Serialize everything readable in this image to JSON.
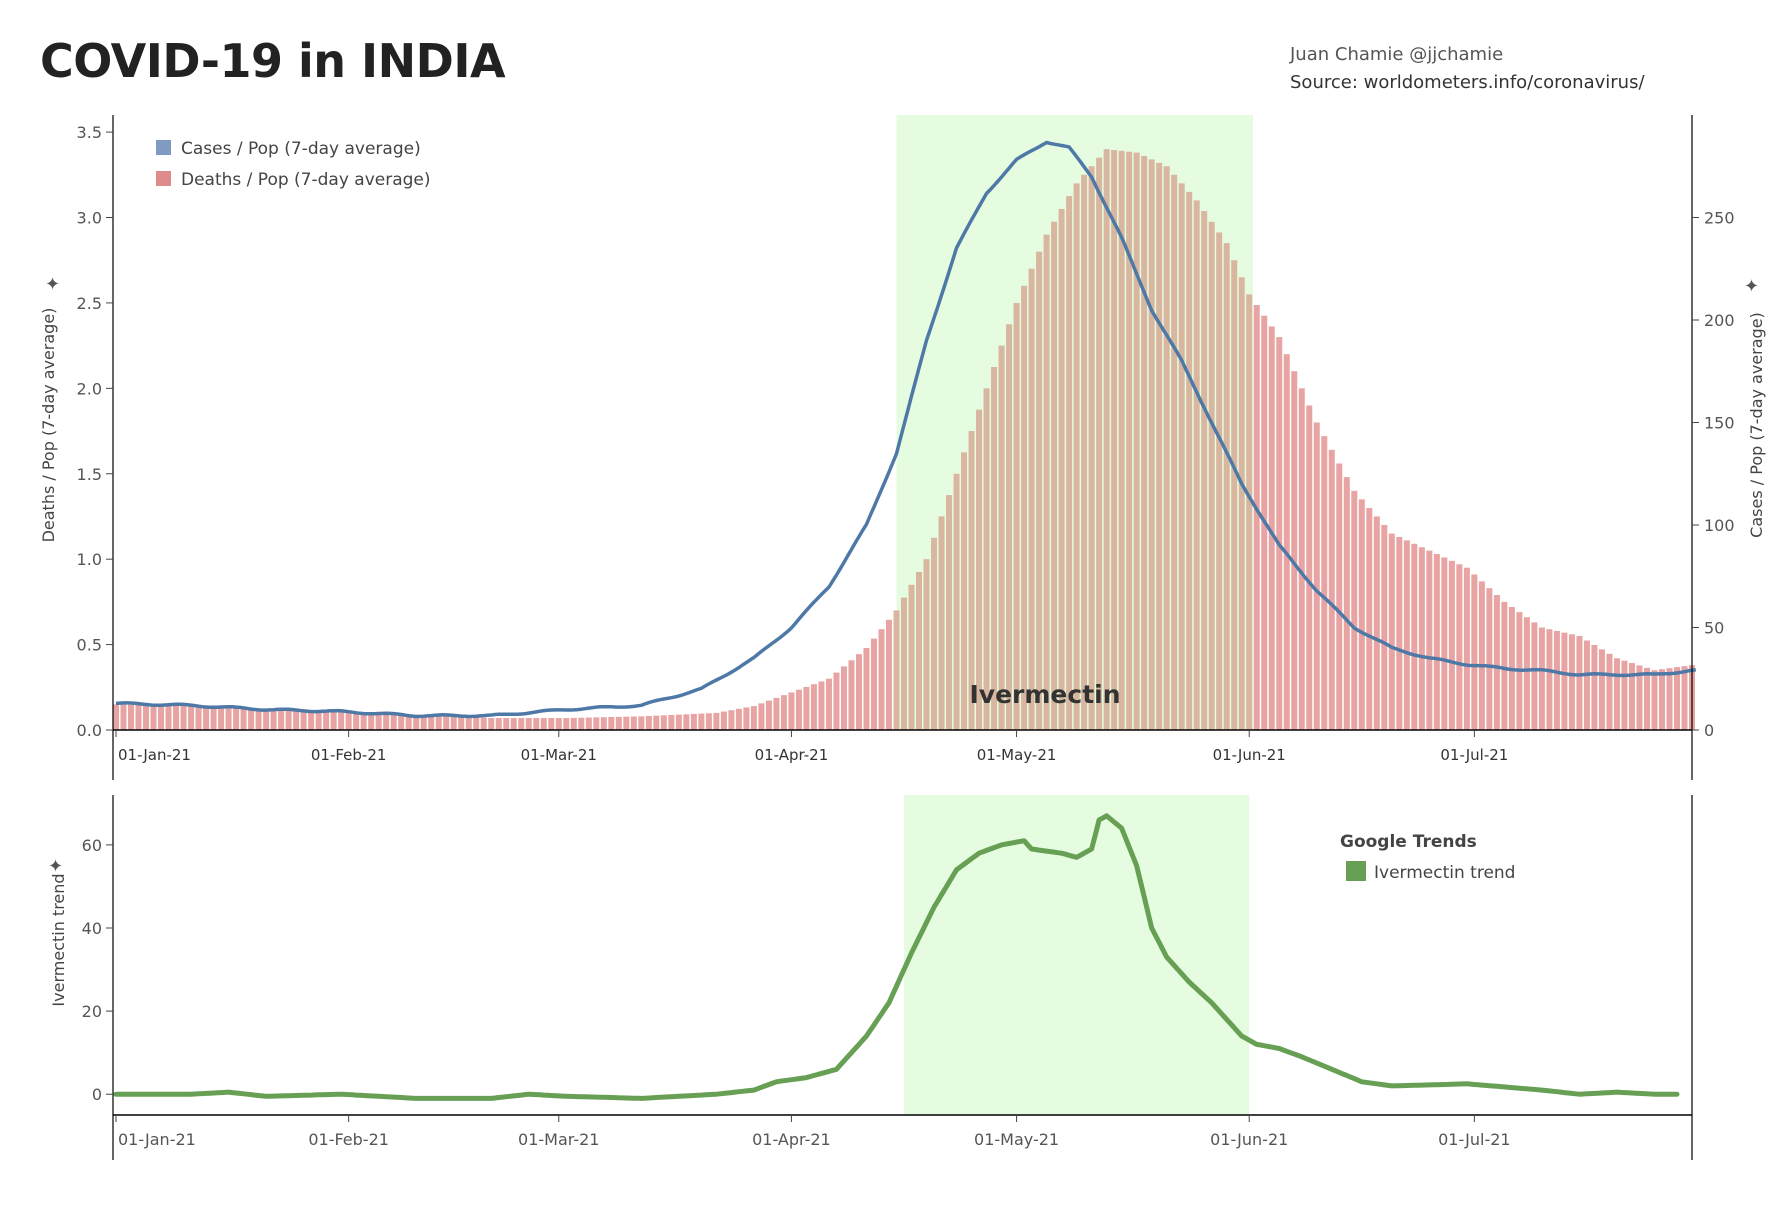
{
  "title": "COVID-19 in INDIA",
  "author": "Juan Chamie @jjchamie",
  "source": "Source: worldometers.info/coronavirus/",
  "highlight_label": "Ivermectin",
  "chart_data": [
    {
      "type": "bar+line",
      "x_start": "01-Jan-21",
      "days": 211,
      "x_ticks": [
        {
          "label": "01-Jan-21",
          "day": 0
        },
        {
          "label": "01-Feb-21",
          "day": 31
        },
        {
          "label": "01-Mar-21",
          "day": 59
        },
        {
          "label": "01-Apr-21",
          "day": 90
        },
        {
          "label": "01-May-21",
          "day": 120
        },
        {
          "label": "01-Jun-21",
          "day": 151
        },
        {
          "label": "01-Jul-21",
          "day": 181
        }
      ],
      "highlight_days": [
        104,
        151.5
      ],
      "left_axis": {
        "label": "Deaths / Pop (7-day average)",
        "ylim": [
          0,
          3.6
        ],
        "ticks": [
          "0.0",
          "0.5",
          "1.0",
          "1.5",
          "2.0",
          "2.5",
          "3.0",
          "3.5"
        ]
      },
      "right_axis": {
        "label": "Cases / Pop (7-day average)",
        "ylim": [
          0,
          300
        ],
        "ticks": [
          "0",
          "50",
          "100",
          "150",
          "200",
          "250"
        ]
      },
      "legend": [
        "Cases / Pop (7-day average)",
        "Deaths / Pop (7-day average)"
      ],
      "colors": {
        "cases": "#4e79a7",
        "cases_legend": "#7f9bc2",
        "deaths": "#e8a3a3",
        "deaths_legend": "#e08b8b",
        "highlight": "#e6fce0"
      },
      "deaths_keypoints": [
        [
          0,
          0.15
        ],
        [
          10,
          0.14
        ],
        [
          20,
          0.12
        ],
        [
          30,
          0.11
        ],
        [
          40,
          0.09
        ],
        [
          50,
          0.07
        ],
        [
          60,
          0.07
        ],
        [
          70,
          0.08
        ],
        [
          80,
          0.1
        ],
        [
          85,
          0.14
        ],
        [
          90,
          0.22
        ],
        [
          95,
          0.3
        ],
        [
          100,
          0.48
        ],
        [
          104,
          0.7
        ],
        [
          108,
          1.0
        ],
        [
          112,
          1.5
        ],
        [
          116,
          2.0
        ],
        [
          120,
          2.5
        ],
        [
          124,
          2.9
        ],
        [
          128,
          3.2
        ],
        [
          132,
          3.4
        ],
        [
          136,
          3.38
        ],
        [
          140,
          3.3
        ],
        [
          144,
          3.1
        ],
        [
          148,
          2.85
        ],
        [
          151,
          2.55
        ],
        [
          155,
          2.3
        ],
        [
          160,
          1.8
        ],
        [
          165,
          1.4
        ],
        [
          170,
          1.15
        ],
        [
          175,
          1.05
        ],
        [
          180,
          0.95
        ],
        [
          185,
          0.75
        ],
        [
          190,
          0.6
        ],
        [
          195,
          0.55
        ],
        [
          200,
          0.42
        ],
        [
          205,
          0.35
        ],
        [
          210,
          0.38
        ]
      ],
      "cases_keypoints": [
        [
          0,
          13
        ],
        [
          10,
          12
        ],
        [
          20,
          10
        ],
        [
          30,
          9
        ],
        [
          40,
          7
        ],
        [
          50,
          7
        ],
        [
          60,
          10
        ],
        [
          70,
          12
        ],
        [
          78,
          20
        ],
        [
          85,
          35
        ],
        [
          90,
          50
        ],
        [
          95,
          70
        ],
        [
          100,
          100
        ],
        [
          104,
          135
        ],
        [
          108,
          190
        ],
        [
          112,
          235
        ],
        [
          116,
          262
        ],
        [
          120,
          278
        ],
        [
          124,
          287
        ],
        [
          127,
          284
        ],
        [
          130,
          270
        ],
        [
          134,
          240
        ],
        [
          138,
          205
        ],
        [
          142,
          180
        ],
        [
          146,
          150
        ],
        [
          150,
          120
        ],
        [
          155,
          90
        ],
        [
          160,
          68
        ],
        [
          165,
          50
        ],
        [
          170,
          40
        ],
        [
          175,
          35
        ],
        [
          180,
          32
        ],
        [
          185,
          30
        ],
        [
          190,
          29
        ],
        [
          195,
          27
        ],
        [
          200,
          27
        ],
        [
          205,
          27
        ],
        [
          210,
          29
        ]
      ]
    },
    {
      "type": "line",
      "y_axis": {
        "label": "Ivermectin trend",
        "ylim": [
          -5,
          72
        ],
        "ticks": [
          "0",
          "20",
          "40",
          "60"
        ]
      },
      "highlight_days": [
        105,
        151
      ],
      "legend_title": "Google Trends",
      "legend": [
        "Ivermectin trend"
      ],
      "color": "#67a054",
      "trend_keypoints": [
        [
          0,
          0
        ],
        [
          10,
          0
        ],
        [
          15,
          0.5
        ],
        [
          20,
          -0.5
        ],
        [
          30,
          0
        ],
        [
          40,
          -1
        ],
        [
          50,
          -1
        ],
        [
          55,
          0
        ],
        [
          60,
          -0.5
        ],
        [
          70,
          -1
        ],
        [
          80,
          0
        ],
        [
          85,
          1
        ],
        [
          88,
          3
        ],
        [
          92,
          4
        ],
        [
          96,
          6
        ],
        [
          100,
          14
        ],
        [
          103,
          22
        ],
        [
          106,
          34
        ],
        [
          109,
          45
        ],
        [
          112,
          54
        ],
        [
          115,
          58
        ],
        [
          118,
          60
        ],
        [
          121,
          61
        ],
        [
          122,
          59
        ],
        [
          126,
          58
        ],
        [
          128,
          57
        ],
        [
          130,
          59
        ],
        [
          131,
          66
        ],
        [
          132,
          67
        ],
        [
          134,
          64
        ],
        [
          136,
          55
        ],
        [
          138,
          40
        ],
        [
          140,
          33
        ],
        [
          143,
          27
        ],
        [
          146,
          22
        ],
        [
          150,
          14
        ],
        [
          152,
          12
        ],
        [
          155,
          11
        ],
        [
          158,
          9
        ],
        [
          162,
          6
        ],
        [
          166,
          3
        ],
        [
          170,
          2
        ],
        [
          180,
          2.5
        ],
        [
          190,
          1
        ],
        [
          195,
          0
        ],
        [
          200,
          0.5
        ],
        [
          205,
          0
        ],
        [
          208,
          0
        ]
      ]
    }
  ]
}
